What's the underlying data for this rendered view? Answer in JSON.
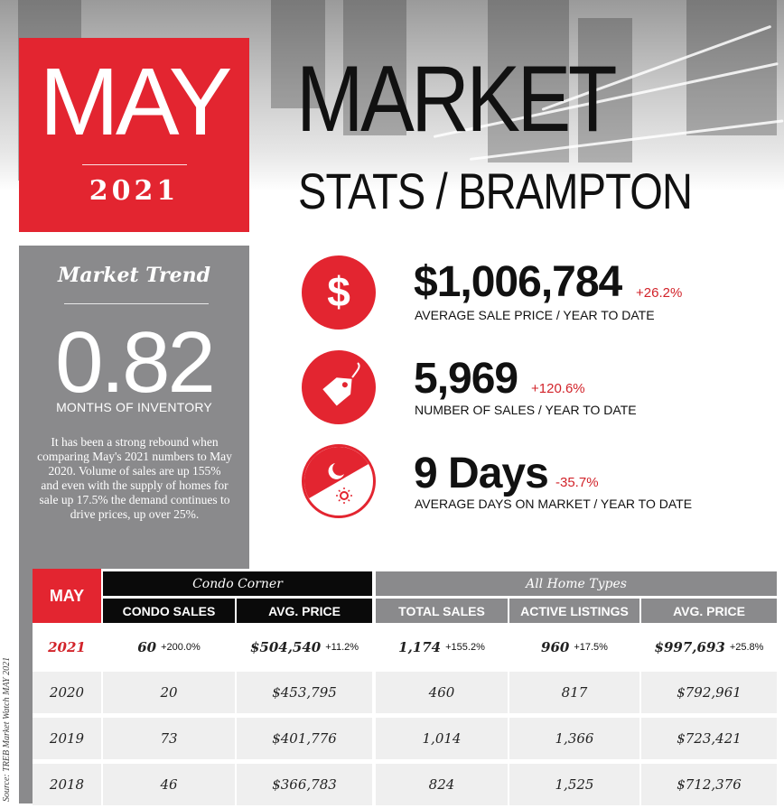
{
  "header": {
    "month": "MAY",
    "year": "2021",
    "title": "MARKET",
    "subtitle": "STATS / BRAMPTON"
  },
  "market_trend": {
    "title": "Market Trend",
    "value": "0.82",
    "label": "MONTHS OF INVENTORY",
    "text_lines": [
      "It has been a strong rebound when",
      "comparing May's 2021 numbers to May",
      "2020.  Volume of sales are up 155%",
      "and even with the supply of homes for",
      "sale up 17.5% the demand continues to",
      "drive prices, up over 25%."
    ]
  },
  "stats": [
    {
      "icon": "dollar-icon",
      "value": "$1,006,784",
      "change": "+26.2%",
      "label_main": "AVERAGE SALE PRICE",
      "label_suffix": " / YEAR TO DATE"
    },
    {
      "icon": "price-tag-icon",
      "value": "5,969",
      "change": "+120.6%",
      "label_main": "NUMBER OF SALES",
      "label_suffix": " / YEAR TO DATE"
    },
    {
      "icon": "day-night-icon",
      "value": "9 Days",
      "change": "-35.7%",
      "label_main": "AVERAGE DAYS ON MARKET",
      "label_suffix": " / YEAR TO DATE"
    }
  ],
  "table": {
    "month_header": "MAY",
    "group_condo": "Condo Corner",
    "group_all": "All Home Types",
    "columns": [
      "CONDO SALES",
      "AVG. PRICE",
      "TOTAL SALES",
      "ACTIVE LISTINGS",
      "AVG. PRICE"
    ],
    "rows": [
      {
        "year": "2021",
        "cells": [
          {
            "v": "60",
            "c": "+200.0%"
          },
          {
            "v": "$504,540",
            "c": "+11.2%"
          },
          {
            "v": "1,174",
            "c": "+155.2%"
          },
          {
            "v": "960",
            "c": "+17.5%"
          },
          {
            "v": "$997,693",
            "c": "+25.8%"
          }
        ]
      },
      {
        "year": "2020",
        "cells": [
          {
            "v": "20",
            "c": ""
          },
          {
            "v": "$453,795",
            "c": ""
          },
          {
            "v": "460",
            "c": ""
          },
          {
            "v": "817",
            "c": ""
          },
          {
            "v": "$792,961",
            "c": ""
          }
        ]
      },
      {
        "year": "2019",
        "cells": [
          {
            "v": "73",
            "c": ""
          },
          {
            "v": "$401,776",
            "c": ""
          },
          {
            "v": "1,014",
            "c": ""
          },
          {
            "v": "1,366",
            "c": ""
          },
          {
            "v": "$723,421",
            "c": ""
          }
        ]
      },
      {
        "year": "2018",
        "cells": [
          {
            "v": "46",
            "c": ""
          },
          {
            "v": "$366,783",
            "c": ""
          },
          {
            "v": "824",
            "c": ""
          },
          {
            "v": "1,525",
            "c": ""
          },
          {
            "v": "$712,376",
            "c": ""
          }
        ]
      }
    ]
  },
  "source": "Source: TREB Market Watch MAY 2021",
  "colors": {
    "accent_red": "#e32530",
    "panel_grey": "#8a8a8c",
    "black": "#0a0a0a"
  }
}
